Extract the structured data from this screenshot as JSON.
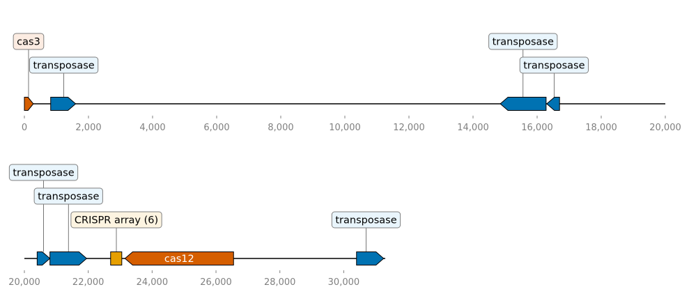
{
  "colors": {
    "transposase": "#0072b2",
    "cas3": "#d55e00",
    "cas12": "#d55e00",
    "crispr": "#e69f00",
    "label_bg_transposase": "#e9f5fc",
    "label_bg_cas3": "#fcece2",
    "label_bg_crispr": "#fdf4e1",
    "label_border": "#7f7f7f",
    "axis_line": "#000000",
    "tick": "#808080"
  },
  "tracks": [
    {
      "id": "track-1",
      "xlim": [
        0,
        20000
      ],
      "ticks": [
        0,
        2000,
        4000,
        6000,
        8000,
        10000,
        12000,
        14000,
        16000,
        18000,
        20000
      ],
      "tick_labels": [
        "0",
        "2,000",
        "4,000",
        "6,000",
        "8,000",
        "10,000",
        "12,000",
        "14,000",
        "16,000",
        "18,000",
        "20,000"
      ],
      "line_range": [
        0,
        20000
      ],
      "features": [
        {
          "name": "cas3",
          "start": 0,
          "end": 280,
          "strand": 1,
          "color_key": "cas3",
          "label": "cas3",
          "label_level": 2,
          "label_pos": 130,
          "label_bg_key": "label_bg_cas3",
          "label_inside": false
        },
        {
          "name": "transposase",
          "start": 820,
          "end": 1600,
          "strand": 1,
          "color_key": "transposase",
          "label": "transposase",
          "label_level": 1,
          "label_pos": 1230,
          "label_bg_key": "label_bg_transposase",
          "label_inside": false
        },
        {
          "name": "transposase",
          "start": 14850,
          "end": 16280,
          "strand": -1,
          "color_key": "transposase",
          "label": "transposase",
          "label_level": 2,
          "label_pos": 15560,
          "label_bg_key": "label_bg_transposase",
          "label_inside": false
        },
        {
          "name": "transposase",
          "start": 16300,
          "end": 16700,
          "strand": -1,
          "color_key": "transposase",
          "label": "transposase",
          "label_level": 1,
          "label_pos": 16530,
          "label_bg_key": "label_bg_transposase",
          "label_inside": false
        }
      ]
    },
    {
      "id": "track-2",
      "xlim": [
        20000,
        31300
      ],
      "ticks": [
        20000,
        22000,
        24000,
        26000,
        28000,
        30000
      ],
      "tick_labels": [
        "20,000",
        "22,000",
        "24,000",
        "26,000",
        "28,000",
        "30,000"
      ],
      "line_range": [
        20000,
        31300
      ],
      "features": [
        {
          "name": "transposase",
          "start": 20400,
          "end": 20800,
          "strand": 1,
          "color_key": "transposase",
          "label": "transposase",
          "label_level": 3,
          "label_pos": 20600,
          "label_bg_key": "label_bg_transposase",
          "label_inside": false
        },
        {
          "name": "transposase",
          "start": 20800,
          "end": 21950,
          "strand": 1,
          "color_key": "transposase",
          "label": "transposase",
          "label_level": 2,
          "label_pos": 21380,
          "label_bg_key": "label_bg_transposase",
          "label_inside": false
        },
        {
          "name": "CRISPR array (6)",
          "start": 22700,
          "end": 23050,
          "strand": 0,
          "color_key": "crispr",
          "label": "CRISPR array (6)",
          "label_level": 1,
          "label_pos": 22880,
          "label_bg_key": "label_bg_crispr",
          "label_inside": false
        },
        {
          "name": "cas12",
          "start": 23150,
          "end": 26550,
          "strand": -1,
          "color_key": "cas12",
          "label": "cas12",
          "label_level": 0,
          "label_pos": 24850,
          "label_bg_key": "",
          "label_inside": true
        },
        {
          "name": "transposase",
          "start": 30400,
          "end": 31250,
          "strand": 1,
          "color_key": "transposase",
          "label": "transposase",
          "label_level": 1,
          "label_pos": 30700,
          "label_bg_key": "label_bg_transposase",
          "label_inside": false
        }
      ]
    }
  ]
}
